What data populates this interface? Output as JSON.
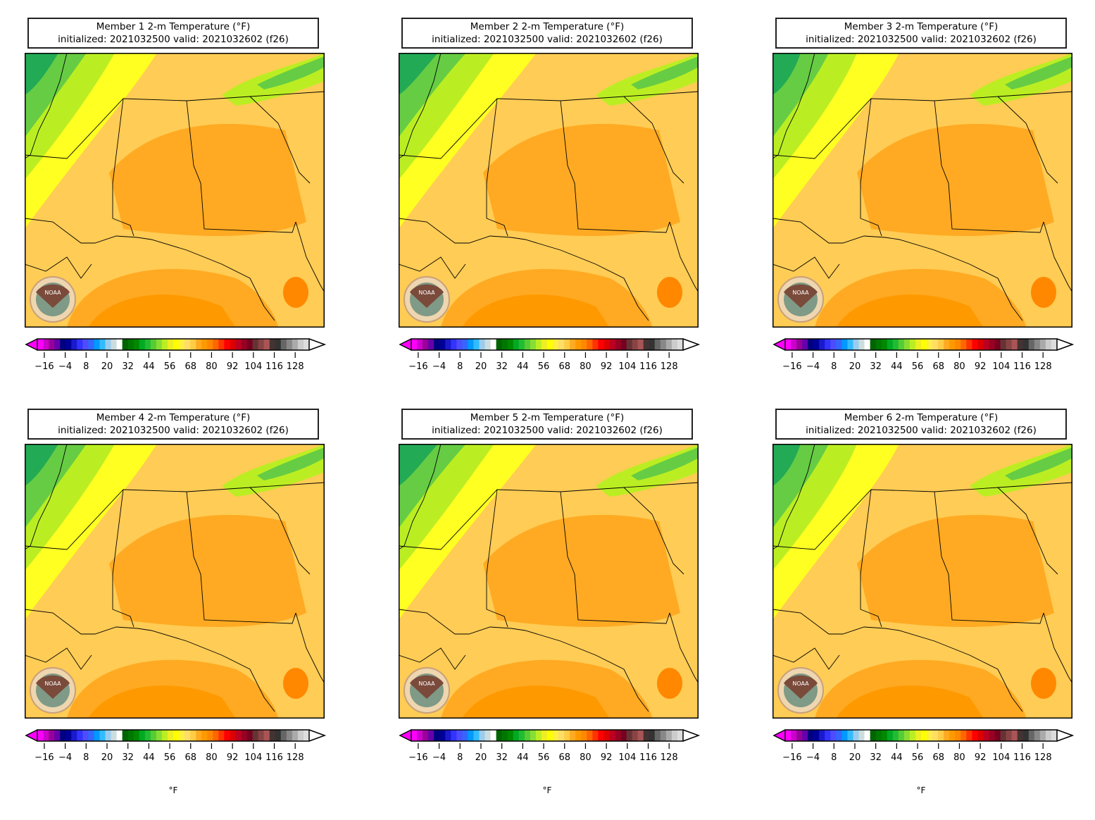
{
  "panels": [
    {
      "title": "Member 1 2-m Temperature (°F)",
      "subtitle": "initialized: 2021032500 valid: 2021032602 (f26)",
      "variant": 1
    },
    {
      "title": "Member 2 2-m Temperature (°F)",
      "subtitle": "initialized: 2021032500 valid: 2021032602 (f26)",
      "variant": 2
    },
    {
      "title": "Member 3 2-m Temperature (°F)",
      "subtitle": "initialized: 2021032500 valid: 2021032602 (f26)",
      "variant": 3
    },
    {
      "title": "Member 4 2-m Temperature (°F)",
      "subtitle": "initialized: 2021032500 valid: 2021032602 (f26)",
      "variant": 4
    },
    {
      "title": "Member 5 2-m Temperature (°F)",
      "subtitle": "initialized: 2021032500 valid: 2021032602 (f26)",
      "variant": 5
    },
    {
      "title": "Member 6 2-m Temperature (°F)",
      "subtitle": "initialized: 2021032500 valid: 2021032602 (f26)",
      "variant": 6
    }
  ],
  "colorbar": {
    "ticks": [
      "−16",
      "−4",
      "8",
      "20",
      "32",
      "44",
      "56",
      "68",
      "80",
      "92",
      "104",
      "116",
      "128"
    ],
    "min": -20,
    "max": 136,
    "unit_label": "°F",
    "colors": [
      "#ff00ff",
      "#cc00cc",
      "#990099",
      "#6600aa",
      "#000080",
      "#000099",
      "#1a1acc",
      "#3333ff",
      "#4d4dff",
      "#3366ff",
      "#0099ff",
      "#33bbff",
      "#99ccee",
      "#ccdddd",
      "#ffffff",
      "#006400",
      "#007700",
      "#008800",
      "#00aa22",
      "#22bb33",
      "#55cc33",
      "#88dd33",
      "#bbee22",
      "#eeee22",
      "#ffff00",
      "#ffee44",
      "#ffdd66",
      "#ffcc44",
      "#ffaa22",
      "#ff9900",
      "#ff8800",
      "#ff6600",
      "#ff3300",
      "#ff0000",
      "#dd0000",
      "#bb0022",
      "#990022",
      "#770022",
      "#663333",
      "#884444",
      "#aa5555",
      "#443333",
      "#333333",
      "#666666",
      "#888888",
      "#aaaaaa",
      "#cccccc",
      "#dddddd"
    ]
  },
  "logo": {
    "text": "NOAA"
  }
}
